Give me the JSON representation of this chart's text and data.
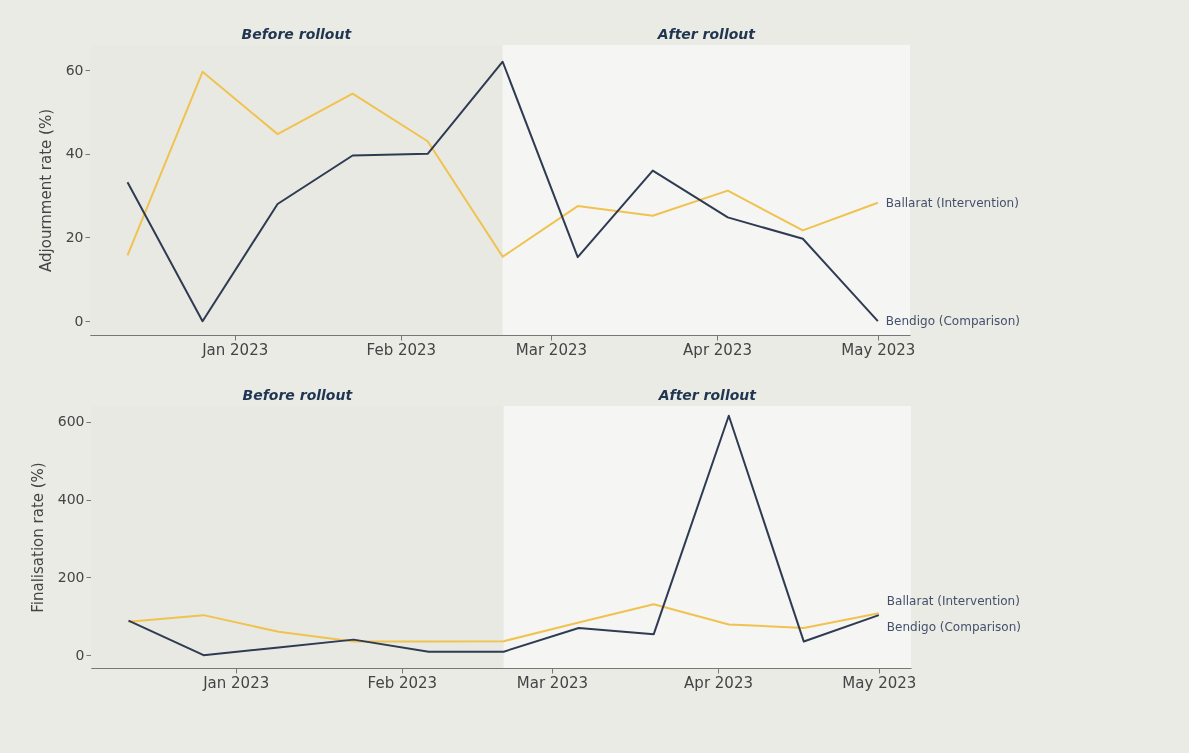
{
  "chart_data": [
    {
      "type": "line",
      "ylabel": "Adjournment rate (%)",
      "x": [
        "2022-12-12",
        "2022-12-26",
        "2023-01-09",
        "2023-01-23",
        "2023-02-06",
        "2023-02-20",
        "2023-03-06",
        "2023-03-20",
        "2023-04-03",
        "2023-04-17",
        "2023-05-01"
      ],
      "series": [
        {
          "name": "Ballarat (Intervention)",
          "color": "#f0c24f",
          "values": [
            15.7,
            59.6,
            44.7,
            54.4,
            43,
            15.4,
            27.5,
            25.2,
            31.2,
            21.7,
            28.3
          ]
        },
        {
          "name": "Bendigo (Comparison)",
          "color": "#2f3b52",
          "values": [
            33.2,
            0,
            28,
            39.6,
            40,
            62,
            15.3,
            36,
            24.8,
            19.7,
            0
          ]
        }
      ],
      "xlim": [
        "2022-12-05",
        "2023-05-07"
      ],
      "xticks": [
        {
          "value": "2023-01-01",
          "label": "Jan 2023"
        },
        {
          "value": "2023-02-01",
          "label": "Feb 2023"
        },
        {
          "value": "2023-03-01",
          "label": "Mar 2023"
        },
        {
          "value": "2023-04-01",
          "label": "Apr 2023"
        },
        {
          "value": "2023-05-01",
          "label": "May 2023"
        }
      ],
      "ylim": [
        -3.3,
        66
      ],
      "yticks": [
        0,
        20,
        40,
        60
      ],
      "grid": false,
      "legend": false,
      "bands": [
        {
          "axis": "x",
          "from": "2022-12-05",
          "to": "2023-02-20",
          "label": "Before rollout",
          "color": "#e9e9e3"
        },
        {
          "axis": "x",
          "from": "2023-02-20",
          "to": "2023-05-07",
          "label": "After rollout",
          "color": "#f5f5f3"
        }
      ]
    },
    {
      "type": "line",
      "ylabel": "Finalisation rate (%)",
      "x": [
        "2022-12-12",
        "2022-12-26",
        "2023-01-09",
        "2023-01-23",
        "2023-02-06",
        "2023-02-20",
        "2023-03-06",
        "2023-03-20",
        "2023-04-03",
        "2023-04-17",
        "2023-05-01"
      ],
      "series": [
        {
          "name": "Ballarat (Intervention)",
          "color": "#f0c24f",
          "values": [
            86,
            103,
            60,
            35,
            35,
            36,
            84,
            131,
            79,
            70,
            108
          ]
        },
        {
          "name": "Bendigo (Comparison)",
          "color": "#2f3b52",
          "values": [
            89,
            0,
            20,
            40,
            9,
            9,
            70,
            54,
            616,
            35,
            103
          ]
        }
      ],
      "xlim": [
        "2022-12-05",
        "2023-05-07"
      ],
      "xticks": [
        {
          "value": "2023-01-01",
          "label": "Jan 2023"
        },
        {
          "value": "2023-02-01",
          "label": "Feb 2023"
        },
        {
          "value": "2023-03-01",
          "label": "Mar 2023"
        },
        {
          "value": "2023-04-01",
          "label": "Apr 2023"
        },
        {
          "value": "2023-05-01",
          "label": "May 2023"
        }
      ],
      "ylim": [
        -33,
        641
      ],
      "yticks": [
        0,
        200,
        400,
        600
      ],
      "grid": false,
      "legend": false,
      "bands": [
        {
          "axis": "x",
          "from": "2022-12-05",
          "to": "2023-02-20",
          "label": "Before rollout",
          "color": "#e9e9e3"
        },
        {
          "axis": "x",
          "from": "2023-02-20",
          "to": "2023-05-07",
          "label": "After rollout",
          "color": "#f5f5f3"
        }
      ]
    }
  ]
}
